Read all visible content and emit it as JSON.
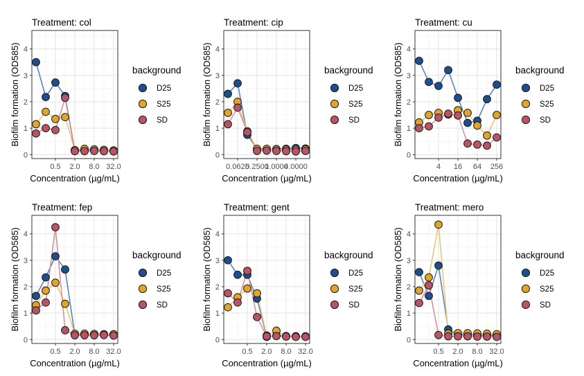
{
  "legend_title": "background",
  "chart_data": [
    {
      "type": "line",
      "title": "Treatment: col",
      "xlabel": "Concentration (µg/mL)",
      "ylabel": "Biofilm formation (OD585)",
      "x_scale": "log2",
      "xlim": [
        0.125,
        32
      ],
      "ylim": [
        -0.15,
        4.7
      ],
      "x_ticks": [
        {
          "v": 0.5,
          "label": "0.5"
        },
        {
          "v": 2,
          "label": "2.0"
        },
        {
          "v": 8,
          "label": "8.0"
        },
        {
          "v": 32,
          "label": "32.0"
        }
      ],
      "y_ticks": [
        {
          "v": 0,
          "label": "0"
        },
        {
          "v": 1,
          "label": "1"
        },
        {
          "v": 2,
          "label": "2"
        },
        {
          "v": 3,
          "label": "3"
        },
        {
          "v": 4,
          "label": "4"
        }
      ],
      "series": [
        {
          "name": "D25",
          "color": "#1f4e8c",
          "line": "#5b84b8",
          "x": [
            0.125,
            0.25,
            0.5,
            1,
            2,
            4,
            8,
            16,
            32
          ],
          "y": [
            3.5,
            2.18,
            2.73,
            2.22,
            0.15,
            0.17,
            0.16,
            0.15,
            0.14
          ]
        },
        {
          "name": "S25",
          "color": "#e0a52a",
          "line": "#ecc77a",
          "x": [
            0.125,
            0.25,
            0.5,
            1,
            2,
            4,
            8,
            16,
            32
          ],
          "y": [
            1.15,
            1.62,
            1.35,
            1.42,
            0.17,
            0.22,
            0.2,
            0.18,
            0.16
          ]
        },
        {
          "name": "SD",
          "color": "#b85463",
          "line": "#d4929c",
          "x": [
            0.125,
            0.25,
            0.5,
            1,
            2,
            4,
            8,
            16,
            32
          ],
          "y": [
            0.8,
            1.0,
            0.93,
            2.15,
            0.13,
            0.13,
            0.14,
            0.13,
            0.12
          ]
        }
      ]
    },
    {
      "type": "line",
      "title": "Treatment: cip",
      "xlabel": "Concentration (µg/mL)",
      "ylabel": "Biofilm formation (OD585)",
      "x_scale": "log2",
      "xlim": [
        0.03125,
        8
      ],
      "ylim": [
        -0.15,
        4.7
      ],
      "x_ticks": [
        {
          "v": 0.0625,
          "label": "0.0625"
        },
        {
          "v": 0.25,
          "label": "0.2500"
        },
        {
          "v": 1,
          "label": "1.0000"
        },
        {
          "v": 4,
          "label": "4.0000"
        }
      ],
      "y_ticks": [
        {
          "v": 0,
          "label": "0"
        },
        {
          "v": 1,
          "label": "1"
        },
        {
          "v": 2,
          "label": "2"
        },
        {
          "v": 3,
          "label": "3"
        },
        {
          "v": 4,
          "label": "4"
        }
      ],
      "series": [
        {
          "name": "D25",
          "color": "#1f4e8c",
          "line": "#5b84b8",
          "x": [
            0.03125,
            0.0625,
            0.125,
            0.25,
            0.5,
            1,
            2,
            4,
            8
          ],
          "y": [
            2.3,
            2.7,
            0.75,
            0.2,
            0.2,
            0.21,
            0.22,
            0.25,
            0.23
          ]
        },
        {
          "name": "S25",
          "color": "#e0a52a",
          "line": "#ecc77a",
          "x": [
            0.03125,
            0.0625,
            0.125,
            0.25,
            0.5,
            1,
            2,
            4,
            8
          ],
          "y": [
            1.58,
            2.0,
            0.88,
            0.22,
            0.22,
            0.2,
            0.19,
            0.18,
            0.2
          ]
        },
        {
          "name": "SD",
          "color": "#b85463",
          "line": "#d4929c",
          "x": [
            0.03125,
            0.0625,
            0.125,
            0.25,
            0.5,
            1,
            2,
            4,
            8
          ],
          "y": [
            1.15,
            1.78,
            0.85,
            0.14,
            0.15,
            0.14,
            0.13,
            0.12,
            0.14
          ]
        }
      ]
    },
    {
      "type": "line",
      "title": "Treatment: cu",
      "xlabel": "Concentration (µg/mL)",
      "ylabel": "Biofilm formation (OD585)",
      "x_scale": "log2",
      "xlim": [
        1,
        256
      ],
      "ylim": [
        -0.15,
        4.7
      ],
      "x_ticks": [
        {
          "v": 4,
          "label": "4"
        },
        {
          "v": 16,
          "label": "16"
        },
        {
          "v": 64,
          "label": "64"
        },
        {
          "v": 256,
          "label": "256"
        }
      ],
      "y_ticks": [
        {
          "v": 0,
          "label": "0"
        },
        {
          "v": 1,
          "label": "1"
        },
        {
          "v": 2,
          "label": "2"
        },
        {
          "v": 3,
          "label": "3"
        },
        {
          "v": 4,
          "label": "4"
        }
      ],
      "series": [
        {
          "name": "D25",
          "color": "#1f4e8c",
          "line": "#5b84b8",
          "x": [
            1,
            2,
            4,
            8,
            16,
            32,
            64,
            128,
            256
          ],
          "y": [
            3.55,
            2.75,
            2.6,
            3.2,
            2.15,
            1.2,
            1.28,
            2.1,
            2.65
          ]
        },
        {
          "name": "S25",
          "color": "#e0a52a",
          "line": "#ecc77a",
          "x": [
            1,
            2,
            4,
            8,
            16,
            32,
            64,
            128,
            256
          ],
          "y": [
            1.22,
            1.5,
            1.58,
            1.52,
            1.68,
            1.58,
            1.1,
            0.72,
            1.5
          ]
        },
        {
          "name": "SD",
          "color": "#b85463",
          "line": "#d4929c",
          "x": [
            1,
            2,
            4,
            8,
            16,
            32,
            64,
            128,
            256
          ],
          "y": [
            1.0,
            1.07,
            1.4,
            1.55,
            1.48,
            0.42,
            0.38,
            0.34,
            0.65
          ]
        }
      ]
    },
    {
      "type": "line",
      "title": "Treatment: fep",
      "xlabel": "Concentration (µg/mL)",
      "ylabel": "Biofilm formation (OD585)",
      "x_scale": "log2",
      "xlim": [
        0.125,
        32
      ],
      "ylim": [
        -0.15,
        4.7
      ],
      "x_ticks": [
        {
          "v": 0.5,
          "label": "0.5"
        },
        {
          "v": 2,
          "label": "2.0"
        },
        {
          "v": 8,
          "label": "8.0"
        },
        {
          "v": 32,
          "label": "32.0"
        }
      ],
      "y_ticks": [
        {
          "v": 0,
          "label": "0"
        },
        {
          "v": 1,
          "label": "1"
        },
        {
          "v": 2,
          "label": "2"
        },
        {
          "v": 3,
          "label": "3"
        },
        {
          "v": 4,
          "label": "4"
        }
      ],
      "series": [
        {
          "name": "D25",
          "color": "#1f4e8c",
          "line": "#5b84b8",
          "x": [
            0.125,
            0.25,
            0.5,
            1,
            2,
            4,
            8,
            16,
            32
          ],
          "y": [
            1.65,
            2.35,
            3.15,
            2.65,
            0.18,
            0.2,
            0.2,
            0.19,
            0.18
          ]
        },
        {
          "name": "S25",
          "color": "#e0a52a",
          "line": "#ecc77a",
          "x": [
            0.125,
            0.25,
            0.5,
            1,
            2,
            4,
            8,
            16,
            32
          ],
          "y": [
            1.3,
            1.85,
            2.15,
            1.35,
            0.22,
            0.22,
            0.21,
            0.2,
            0.2
          ]
        },
        {
          "name": "SD",
          "color": "#b85463",
          "line": "#d4929c",
          "x": [
            0.125,
            0.25,
            0.5,
            1,
            2,
            4,
            8,
            16,
            32
          ],
          "y": [
            1.1,
            1.4,
            4.25,
            0.35,
            0.16,
            0.16,
            0.16,
            0.17,
            0.15
          ]
        }
      ]
    },
    {
      "type": "line",
      "title": "Treatment: gent",
      "xlabel": "Concentration (µg/mL)",
      "ylabel": "Biofilm formation (OD585)",
      "x_scale": "log2",
      "xlim": [
        0.125,
        32
      ],
      "ylim": [
        -0.15,
        4.7
      ],
      "x_ticks": [
        {
          "v": 0.5,
          "label": "0.5"
        },
        {
          "v": 2,
          "label": "2.0"
        },
        {
          "v": 8,
          "label": "8.0"
        },
        {
          "v": 32,
          "label": "32.0"
        }
      ],
      "y_ticks": [
        {
          "v": 0,
          "label": "0"
        },
        {
          "v": 1,
          "label": "1"
        },
        {
          "v": 2,
          "label": "2"
        },
        {
          "v": 3,
          "label": "3"
        },
        {
          "v": 4,
          "label": "4"
        }
      ],
      "series": [
        {
          "name": "D25",
          "color": "#1f4e8c",
          "line": "#5b84b8",
          "x": [
            0.125,
            0.25,
            0.5,
            1,
            2,
            4,
            8,
            16,
            32
          ],
          "y": [
            3.0,
            2.45,
            2.45,
            1.55,
            0.1,
            0.15,
            0.12,
            0.12,
            0.11
          ]
        },
        {
          "name": "S25",
          "color": "#e0a52a",
          "line": "#ecc77a",
          "x": [
            0.125,
            0.25,
            0.5,
            1,
            2,
            4,
            8,
            16,
            32
          ],
          "y": [
            1.22,
            1.6,
            1.93,
            1.75,
            0.15,
            0.33,
            0.13,
            0.12,
            0.12
          ]
        },
        {
          "name": "SD",
          "color": "#b85463",
          "line": "#d4929c",
          "x": [
            0.125,
            0.25,
            0.5,
            1,
            2,
            4,
            8,
            16,
            32
          ],
          "y": [
            1.75,
            1.4,
            2.6,
            0.85,
            0.12,
            0.13,
            0.11,
            0.1,
            0.1
          ]
        }
      ]
    },
    {
      "type": "line",
      "title": "Treatment: mero",
      "xlabel": "Concentration (µg/mL)",
      "ylabel": "Biofilm formation (OD585)",
      "x_scale": "log2",
      "xlim": [
        0.125,
        32
      ],
      "ylim": [
        -0.15,
        4.7
      ],
      "x_ticks": [
        {
          "v": 0.5,
          "label": "0.5"
        },
        {
          "v": 2,
          "label": "2.0"
        },
        {
          "v": 8,
          "label": "8.0"
        },
        {
          "v": 32,
          "label": "32.0"
        }
      ],
      "y_ticks": [
        {
          "v": 0,
          "label": "0"
        },
        {
          "v": 1,
          "label": "1"
        },
        {
          "v": 2,
          "label": "2"
        },
        {
          "v": 3,
          "label": "3"
        },
        {
          "v": 4,
          "label": "4"
        }
      ],
      "series": [
        {
          "name": "D25",
          "color": "#1f4e8c",
          "line": "#5b84b8",
          "x": [
            0.125,
            0.25,
            0.5,
            1,
            2,
            4,
            8,
            16,
            32
          ],
          "y": [
            2.55,
            1.65,
            2.8,
            0.38,
            0.18,
            0.18,
            0.17,
            0.16,
            0.15
          ]
        },
        {
          "name": "S25",
          "color": "#e0a52a",
          "line": "#ecc77a",
          "x": [
            0.125,
            0.25,
            0.5,
            1,
            2,
            4,
            8,
            16,
            32
          ],
          "y": [
            1.85,
            2.35,
            4.35,
            0.22,
            0.24,
            0.24,
            0.23,
            0.22,
            0.2
          ]
        },
        {
          "name": "SD",
          "color": "#b85463",
          "line": "#d4929c",
          "x": [
            0.125,
            0.25,
            0.5,
            1,
            2,
            4,
            8,
            16,
            32
          ],
          "y": [
            1.38,
            2.05,
            0.17,
            0.12,
            0.12,
            0.12,
            0.11,
            0.11,
            0.1
          ]
        }
      ]
    }
  ]
}
